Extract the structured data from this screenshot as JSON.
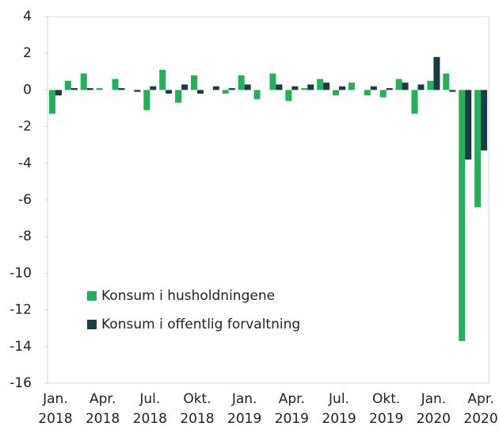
{
  "chart_data": {
    "type": "bar",
    "categories": [
      "Jan. 2018",
      null,
      null,
      "Apr. 2018",
      null,
      null,
      "Jul. 2018",
      null,
      null,
      "Okt. 2018",
      null,
      null,
      "Jan. 2019",
      null,
      null,
      "Apr. 2019",
      null,
      null,
      "Jul. 2019",
      null,
      null,
      "Okt. 2019",
      null,
      null,
      "Jan. 2020",
      null,
      null,
      "Apr. 2020"
    ],
    "series": [
      {
        "name": "Konsum i husholdningene",
        "color": "#22b159",
        "values": [
          -1.3,
          0.5,
          0.9,
          0.1,
          0.6,
          0.0,
          -1.1,
          1.1,
          -0.7,
          0.8,
          0.0,
          -0.2,
          0.8,
          -0.5,
          0.9,
          -0.6,
          0.1,
          0.6,
          -0.3,
          0.4,
          -0.3,
          -0.4,
          0.6,
          -1.3,
          0.5,
          0.9,
          -13.7,
          -6.4
        ]
      },
      {
        "name": "Konsum i offentlig forvaltning",
        "color": "#1b3c40",
        "values": [
          -0.3,
          0.1,
          0.1,
          0.0,
          0.1,
          -0.1,
          0.2,
          -0.2,
          0.3,
          -0.2,
          0.2,
          0.1,
          0.3,
          0.0,
          0.3,
          0.2,
          0.3,
          0.4,
          0.2,
          0.0,
          0.2,
          0.1,
          0.4,
          0.3,
          1.8,
          -0.1,
          -3.8,
          -3.3
        ]
      }
    ],
    "ylim": [
      -16,
      4
    ],
    "yticks": [
      -16,
      -14,
      -12,
      -10,
      -8,
      -6,
      -4,
      -2,
      0,
      2,
      4
    ],
    "grid": false,
    "legend": "lower left"
  }
}
